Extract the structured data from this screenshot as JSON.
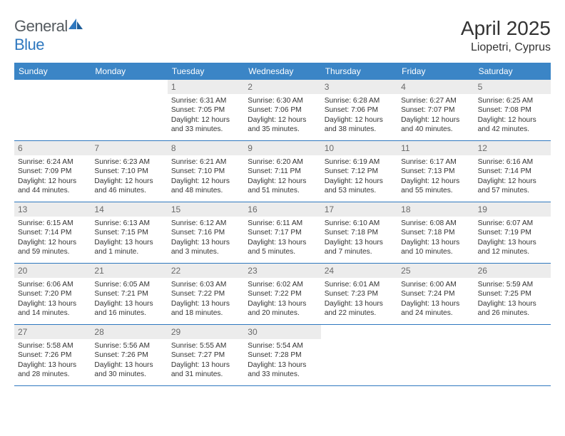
{
  "brand": {
    "part1": "General",
    "part2": "Blue"
  },
  "title": "April 2025",
  "location": "Liopetri, Cyprus",
  "colors": {
    "header_bg": "#3b85c6",
    "divider": "#2f78bf",
    "daynum_bg": "#ececec",
    "text": "#333333",
    "logo_gray": "#555b60",
    "logo_blue": "#2f78bf"
  },
  "day_headers": [
    "Sunday",
    "Monday",
    "Tuesday",
    "Wednesday",
    "Thursday",
    "Friday",
    "Saturday"
  ],
  "weeks": [
    [
      {
        "n": "",
        "sr": "",
        "ss": "",
        "dl": ""
      },
      {
        "n": "",
        "sr": "",
        "ss": "",
        "dl": ""
      },
      {
        "n": "1",
        "sr": "6:31 AM",
        "ss": "7:05 PM",
        "dl": "12 hours and 33 minutes."
      },
      {
        "n": "2",
        "sr": "6:30 AM",
        "ss": "7:06 PM",
        "dl": "12 hours and 35 minutes."
      },
      {
        "n": "3",
        "sr": "6:28 AM",
        "ss": "7:06 PM",
        "dl": "12 hours and 38 minutes."
      },
      {
        "n": "4",
        "sr": "6:27 AM",
        "ss": "7:07 PM",
        "dl": "12 hours and 40 minutes."
      },
      {
        "n": "5",
        "sr": "6:25 AM",
        "ss": "7:08 PM",
        "dl": "12 hours and 42 minutes."
      }
    ],
    [
      {
        "n": "6",
        "sr": "6:24 AM",
        "ss": "7:09 PM",
        "dl": "12 hours and 44 minutes."
      },
      {
        "n": "7",
        "sr": "6:23 AM",
        "ss": "7:10 PM",
        "dl": "12 hours and 46 minutes."
      },
      {
        "n": "8",
        "sr": "6:21 AM",
        "ss": "7:10 PM",
        "dl": "12 hours and 48 minutes."
      },
      {
        "n": "9",
        "sr": "6:20 AM",
        "ss": "7:11 PM",
        "dl": "12 hours and 51 minutes."
      },
      {
        "n": "10",
        "sr": "6:19 AM",
        "ss": "7:12 PM",
        "dl": "12 hours and 53 minutes."
      },
      {
        "n": "11",
        "sr": "6:17 AM",
        "ss": "7:13 PM",
        "dl": "12 hours and 55 minutes."
      },
      {
        "n": "12",
        "sr": "6:16 AM",
        "ss": "7:14 PM",
        "dl": "12 hours and 57 minutes."
      }
    ],
    [
      {
        "n": "13",
        "sr": "6:15 AM",
        "ss": "7:14 PM",
        "dl": "12 hours and 59 minutes."
      },
      {
        "n": "14",
        "sr": "6:13 AM",
        "ss": "7:15 PM",
        "dl": "13 hours and 1 minute."
      },
      {
        "n": "15",
        "sr": "6:12 AM",
        "ss": "7:16 PM",
        "dl": "13 hours and 3 minutes."
      },
      {
        "n": "16",
        "sr": "6:11 AM",
        "ss": "7:17 PM",
        "dl": "13 hours and 5 minutes."
      },
      {
        "n": "17",
        "sr": "6:10 AM",
        "ss": "7:18 PM",
        "dl": "13 hours and 7 minutes."
      },
      {
        "n": "18",
        "sr": "6:08 AM",
        "ss": "7:18 PM",
        "dl": "13 hours and 10 minutes."
      },
      {
        "n": "19",
        "sr": "6:07 AM",
        "ss": "7:19 PM",
        "dl": "13 hours and 12 minutes."
      }
    ],
    [
      {
        "n": "20",
        "sr": "6:06 AM",
        "ss": "7:20 PM",
        "dl": "13 hours and 14 minutes."
      },
      {
        "n": "21",
        "sr": "6:05 AM",
        "ss": "7:21 PM",
        "dl": "13 hours and 16 minutes."
      },
      {
        "n": "22",
        "sr": "6:03 AM",
        "ss": "7:22 PM",
        "dl": "13 hours and 18 minutes."
      },
      {
        "n": "23",
        "sr": "6:02 AM",
        "ss": "7:22 PM",
        "dl": "13 hours and 20 minutes."
      },
      {
        "n": "24",
        "sr": "6:01 AM",
        "ss": "7:23 PM",
        "dl": "13 hours and 22 minutes."
      },
      {
        "n": "25",
        "sr": "6:00 AM",
        "ss": "7:24 PM",
        "dl": "13 hours and 24 minutes."
      },
      {
        "n": "26",
        "sr": "5:59 AM",
        "ss": "7:25 PM",
        "dl": "13 hours and 26 minutes."
      }
    ],
    [
      {
        "n": "27",
        "sr": "5:58 AM",
        "ss": "7:26 PM",
        "dl": "13 hours and 28 minutes."
      },
      {
        "n": "28",
        "sr": "5:56 AM",
        "ss": "7:26 PM",
        "dl": "13 hours and 30 minutes."
      },
      {
        "n": "29",
        "sr": "5:55 AM",
        "ss": "7:27 PM",
        "dl": "13 hours and 31 minutes."
      },
      {
        "n": "30",
        "sr": "5:54 AM",
        "ss": "7:28 PM",
        "dl": "13 hours and 33 minutes."
      },
      {
        "n": "",
        "sr": "",
        "ss": "",
        "dl": ""
      },
      {
        "n": "",
        "sr": "",
        "ss": "",
        "dl": ""
      },
      {
        "n": "",
        "sr": "",
        "ss": "",
        "dl": ""
      }
    ]
  ],
  "labels": {
    "sunrise": "Sunrise: ",
    "sunset": "Sunset: ",
    "daylight": "Daylight: "
  }
}
